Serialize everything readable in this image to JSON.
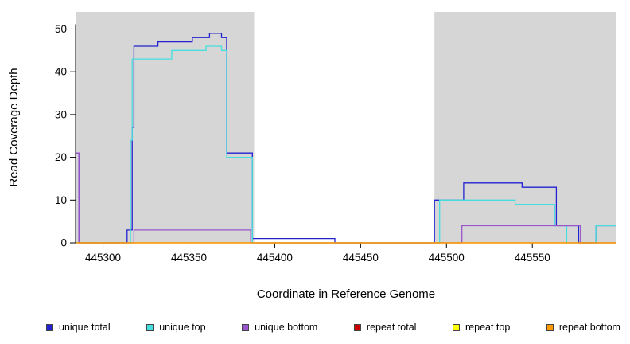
{
  "chart_data": {
    "type": "line",
    "subtype": "step-coverage",
    "title": "",
    "xlabel": "Coordinate in Reference Genome",
    "ylabel": "Read Coverage Depth",
    "xlim": [
      445284,
      445599
    ],
    "ylim": [
      0,
      54
    ],
    "xticks": [
      445300,
      445350,
      445400,
      445450,
      445500,
      445550
    ],
    "yticks": [
      0,
      10,
      20,
      30,
      40,
      50
    ],
    "grid": false,
    "legend_position": "bottom",
    "plot_background": "#ffffff",
    "shade_color": "#d6d6d6",
    "shaded_regions": [
      {
        "x0": 445284,
        "x1": 445388
      },
      {
        "x0": 445493,
        "x1": 445599
      }
    ],
    "series": [
      {
        "name": "unique total",
        "color": "#2222d0",
        "points": [
          [
            445284,
            21
          ],
          [
            445286,
            21
          ],
          [
            445286,
            0
          ],
          [
            445314,
            0
          ],
          [
            445314,
            3
          ],
          [
            445317,
            3
          ],
          [
            445317,
            27
          ],
          [
            445318,
            27
          ],
          [
            445318,
            46
          ],
          [
            445332,
            46
          ],
          [
            445332,
            47
          ],
          [
            445352,
            47
          ],
          [
            445352,
            48
          ],
          [
            445362,
            48
          ],
          [
            445362,
            49
          ],
          [
            445369,
            49
          ],
          [
            445369,
            48
          ],
          [
            445372,
            48
          ],
          [
            445372,
            21
          ],
          [
            445387,
            21
          ],
          [
            445387,
            1
          ],
          [
            445435,
            1
          ],
          [
            445435,
            0
          ],
          [
            445493,
            0
          ],
          [
            445493,
            10
          ],
          [
            445510,
            10
          ],
          [
            445510,
            14
          ],
          [
            445544,
            14
          ],
          [
            445544,
            13
          ],
          [
            445564,
            13
          ],
          [
            445564,
            4
          ],
          [
            445577,
            4
          ],
          [
            445577,
            0
          ],
          [
            445587,
            0
          ],
          [
            445587,
            4
          ],
          [
            445599,
            4
          ]
        ]
      },
      {
        "name": "unique top",
        "color": "#45dede",
        "points": [
          [
            445284,
            0
          ],
          [
            445316,
            0
          ],
          [
            445316,
            24
          ],
          [
            445317,
            24
          ],
          [
            445317,
            43
          ],
          [
            445340,
            43
          ],
          [
            445340,
            45
          ],
          [
            445360,
            45
          ],
          [
            445360,
            46
          ],
          [
            445369,
            46
          ],
          [
            445369,
            45
          ],
          [
            445372,
            45
          ],
          [
            445372,
            20
          ],
          [
            445387,
            20
          ],
          [
            445387,
            0
          ],
          [
            445496,
            0
          ],
          [
            445496,
            10
          ],
          [
            445540,
            10
          ],
          [
            445540,
            9
          ],
          [
            445563,
            9
          ],
          [
            445563,
            4
          ],
          [
            445570,
            4
          ],
          [
            445570,
            0
          ],
          [
            445587,
            0
          ],
          [
            445587,
            4
          ],
          [
            445599,
            4
          ]
        ]
      },
      {
        "name": "unique bottom",
        "color": "#9955cc",
        "points": [
          [
            445284,
            21
          ],
          [
            445286,
            21
          ],
          [
            445286,
            0
          ],
          [
            445318,
            0
          ],
          [
            445318,
            3
          ],
          [
            445386,
            3
          ],
          [
            445386,
            0
          ],
          [
            445509,
            0
          ],
          [
            445509,
            4
          ],
          [
            445578,
            4
          ],
          [
            445578,
            0
          ],
          [
            445599,
            0
          ]
        ]
      },
      {
        "name": "repeat total",
        "color": "#cc0000",
        "points": [
          [
            445284,
            0
          ],
          [
            445599,
            0
          ]
        ]
      },
      {
        "name": "repeat top",
        "color": "#ffff00",
        "points": [
          [
            445284,
            0
          ],
          [
            445599,
            0
          ]
        ]
      },
      {
        "name": "repeat bottom",
        "color": "#ff9900",
        "points": [
          [
            445284,
            0
          ],
          [
            445599,
            0
          ]
        ]
      }
    ]
  }
}
